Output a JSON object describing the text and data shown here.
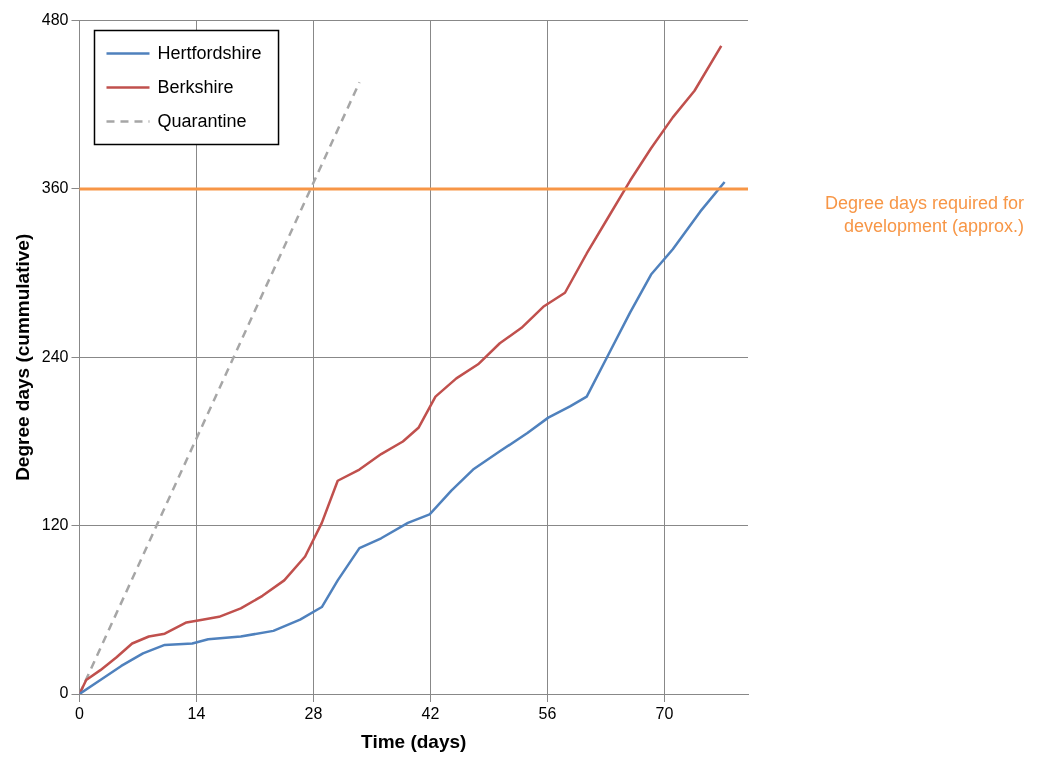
{
  "chart_data": {
    "type": "line",
    "xlabel": "Time (days)",
    "ylabel": "Degree days (cummulative)",
    "xlim": [
      0,
      80
    ],
    "xticks": [
      0,
      14,
      28,
      42,
      56,
      70
    ],
    "ylim": [
      0,
      480
    ],
    "yticks": [
      0,
      120,
      240,
      360,
      480
    ],
    "grid": true,
    "legend": "top left",
    "marker": "none",
    "series": [
      {
        "name": "Hertfordshire",
        "color": "#4f81bd",
        "line_style": "solid",
        "x": [
          0,
          2.5,
          5,
          7.6,
          10.2,
          13.5,
          15.4,
          19.3,
          23.2,
          26.4,
          29,
          30.9,
          33.5,
          36.1,
          39.3,
          41.9,
          44.5,
          47.1,
          50.3,
          53.6,
          56.1,
          58.7,
          60.7,
          63.3,
          65.9,
          68.4,
          71,
          74.3,
          77.2
        ],
        "values": [
          0,
          10,
          20,
          29,
          35,
          36,
          39,
          41,
          45,
          53,
          62,
          81,
          104,
          111,
          122,
          128,
          145,
          160,
          173,
          186,
          197,
          205,
          212,
          242,
          272,
          299,
          317,
          344,
          365
        ]
      },
      {
        "name": "Berkshire",
        "color": "#c0504d",
        "line_style": "solid",
        "x": [
          0,
          0.8,
          2.5,
          4.4,
          6.3,
          8.3,
          10.2,
          12.8,
          14.7,
          16.7,
          19.3,
          21.9,
          24.5,
          27,
          29,
          30.9,
          33.5,
          36.1,
          38.7,
          40.6,
          42.6,
          45.1,
          47.7,
          50.3,
          52.9,
          55.5,
          58.1,
          60.7,
          63.3,
          65.9,
          68.4,
          71,
          73.6,
          76.8
        ],
        "values": [
          0,
          10,
          17,
          26,
          36,
          41,
          43,
          51,
          53,
          55,
          61,
          70,
          81,
          98,
          122,
          152,
          160,
          171,
          180,
          190,
          212,
          225,
          235,
          250,
          261,
          276,
          286,
          314,
          340,
          366,
          389,
          411,
          430,
          462
        ]
      },
      {
        "name": "Quarantine",
        "color": "#a6a6a6",
        "line_style": "dashed",
        "x": [
          0,
          33.5
        ],
        "values": [
          0,
          436
        ]
      }
    ],
    "ref_lines": [
      {
        "axis": "y",
        "value": 360,
        "label": "Degree days required for development (approx.)",
        "color": "#f79646"
      }
    ]
  }
}
